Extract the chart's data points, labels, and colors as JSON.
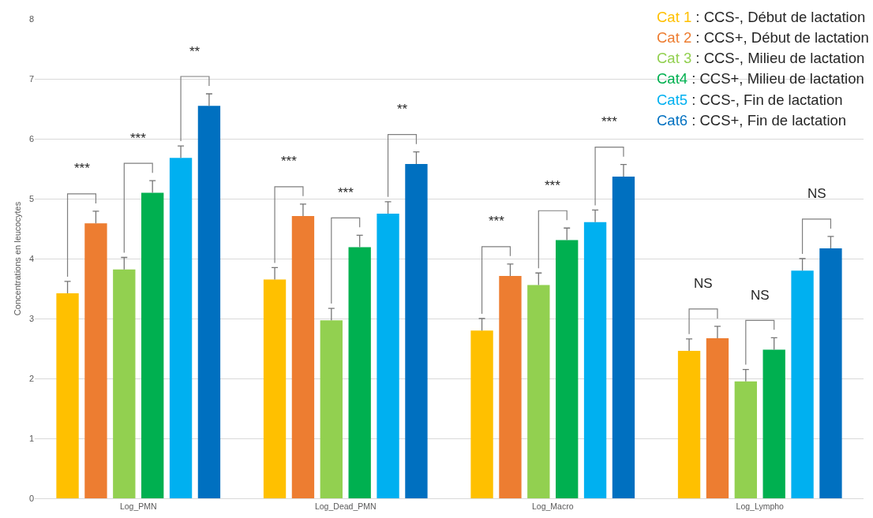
{
  "chart_data": {
    "type": "bar",
    "ylabel": "Concentrations en leucocytes",
    "categories": [
      "Log_PMN",
      "Log_Dead_PMN",
      "Log_Macro",
      "Log_Lympho"
    ],
    "series": [
      {
        "name": "Cat 1 : CCS-, Début de lactation",
        "color": "#ffc000",
        "values": [
          3.42,
          3.65,
          2.8,
          2.46
        ],
        "errors": [
          [
            3.42,
            3.62
          ],
          [
            3.65,
            3.85
          ],
          [
            2.8,
            3.0
          ],
          [
            2.46,
            2.66
          ]
        ]
      },
      {
        "name": "Cat 2 : CCS+, Début de lactation",
        "color": "#ed7d31",
        "values": [
          4.59,
          4.71,
          3.71,
          2.67
        ],
        "errors": [
          [
            4.59,
            4.79
          ],
          [
            4.71,
            4.91
          ],
          [
            3.71,
            3.91
          ],
          [
            2.67,
            2.87
          ]
        ]
      },
      {
        "name": "Cat 3 : CCS-, Milieu de lactation",
        "color": "#92d050",
        "values": [
          3.82,
          2.97,
          3.56,
          1.95
        ],
        "errors": [
          [
            3.82,
            4.02
          ],
          [
            2.97,
            3.17
          ],
          [
            3.56,
            3.76
          ],
          [
            1.95,
            2.15
          ]
        ]
      },
      {
        "name": "Cat4 : CCS+, Milieu de lactation",
        "color": "#00b050",
        "values": [
          5.1,
          4.19,
          4.31,
          2.48
        ],
        "errors": [
          [
            5.1,
            5.3
          ],
          [
            4.19,
            4.39
          ],
          [
            4.31,
            4.51
          ],
          [
            2.48,
            2.68
          ]
        ]
      },
      {
        "name": "Cat5 : CCS-, Fin de lactation",
        "color": "#00b0f0",
        "values": [
          5.68,
          4.75,
          4.61,
          3.8
        ],
        "errors": [
          [
            5.68,
            5.88
          ],
          [
            4.75,
            4.95
          ],
          [
            4.61,
            4.81
          ],
          [
            3.8,
            4.0
          ]
        ]
      },
      {
        "name": "Cat6 : CCS+, Fin de lactation",
        "color": "#0070c0",
        "values": [
          6.55,
          5.58,
          5.37,
          4.17
        ],
        "errors": [
          [
            6.55,
            6.75
          ],
          [
            5.58,
            5.78
          ],
          [
            5.37,
            5.57
          ],
          [
            4.17,
            4.37
          ]
        ]
      }
    ],
    "ylim": [
      0,
      8
    ],
    "yticks": [
      0,
      1,
      2,
      3,
      4,
      5,
      6,
      7,
      8
    ],
    "grid": "y",
    "legend": "top right",
    "annotations": [
      "***",
      "***",
      "**",
      "***",
      "***",
      "**",
      "***",
      "***",
      "***",
      "NS",
      "NS",
      "NS"
    ]
  }
}
